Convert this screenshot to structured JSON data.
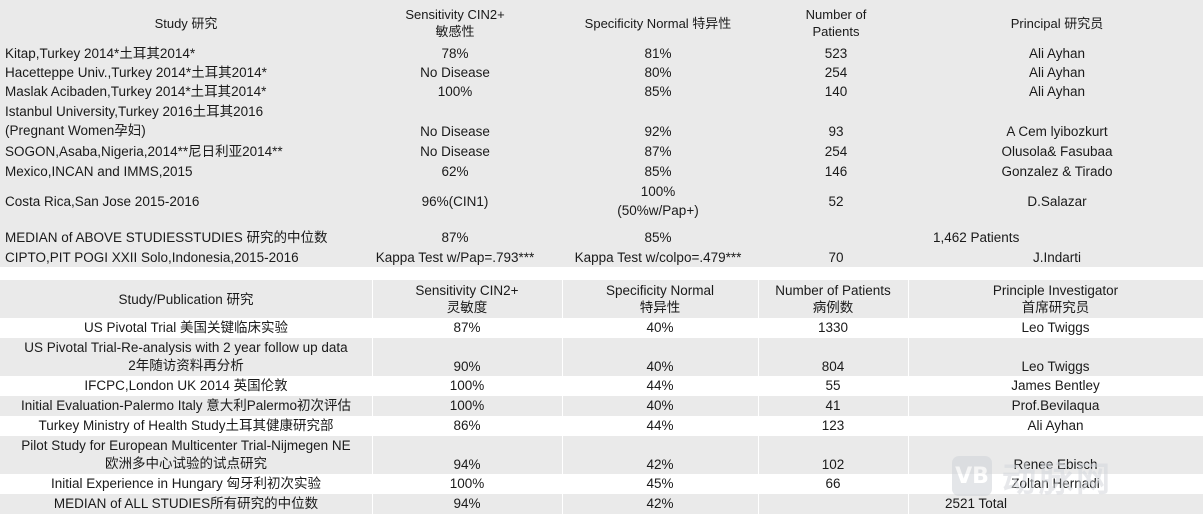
{
  "table1": {
    "headers": {
      "study": "Study 研究",
      "sensitivity_1": "Sensitivity CIN2+",
      "sensitivity_2": "敏感性",
      "specificity": "Specificity Normal 特异性",
      "patients_1": "Number of",
      "patients_2": "Patients",
      "principal": "Principal  研究员"
    },
    "rows": [
      {
        "study": "Kitap,Turkey 2014*土耳其2014*",
        "sensitivity": "78%",
        "specificity": "81%",
        "patients": "523",
        "principal": "Ali Ayhan"
      },
      {
        "study": "Hacetteppe Univ.,Turkey 2014*土耳其2014*",
        "sensitivity": "No Disease",
        "specificity": "80%",
        "patients": "254",
        "principal": "Ali Ayhan"
      },
      {
        "study": "Maslak Acibaden,Turkey 2014*土耳其2014*",
        "sensitivity": "100%",
        "specificity": "85%",
        "patients": "140",
        "principal": "Ali Ayhan"
      },
      {
        "study_1": "Istanbul University,Turkey 2016土耳其2016",
        "study_2": "(Pregnant Women孕妇)",
        "sensitivity": "No Disease",
        "specificity": "92%",
        "patients": "93",
        "principal": "A Cem lyibozkurt"
      },
      {
        "study": "SOGON,Asaba,Nigeria,2014**尼日利亚2014**",
        "sensitivity": "No Disease",
        "specificity": "87%",
        "patients": "254",
        "principal": "Olusola& Fasubaa"
      },
      {
        "study": "Mexico,INCAN and IMMS,2015",
        "sensitivity": "62%",
        "specificity": "85%",
        "patients": "146",
        "principal": "Gonzalez & Tirado"
      },
      {
        "study": "Costa Rica,San Jose 2015-2016",
        "sensitivity": "96%(CIN1)",
        "specificity_1": "100%",
        "specificity_2": "(50%w/Pap+)",
        "patients": "52",
        "principal": "D.Salazar"
      },
      {
        "study": "MEDIAN of ABOVE STUDIESSTUDIES 研究的中位数",
        "sensitivity": "87%",
        "specificity": "85%",
        "patients": "",
        "principal": "1,462 Patients"
      },
      {
        "study": "CIPTO,PIT POGI XXII Solo,Indonesia,2015-2016",
        "sensitivity": "Kappa Test w/Pap=.793***",
        "specificity": "Kappa Test w/colpo=.479***",
        "patients": "70",
        "principal": "J.Indarti"
      }
    ]
  },
  "table2": {
    "headers": {
      "study": "Study/Publication 研究",
      "sensitivity_1": "Sensitivity CIN2+",
      "sensitivity_2": "灵敏度",
      "specificity_1": "Specificity Normal",
      "specificity_2": "特异性",
      "patients_1": "Number of Patients",
      "patients_2": "病例数",
      "investigator_1": "Principle Investigator",
      "investigator_2": "首席研究员"
    },
    "rows": [
      {
        "study": "US Pivotal Trial 美国关键临床实验",
        "sensitivity": "87%",
        "specificity": "40%",
        "patients": "1330",
        "investigator": "Leo Twiggs"
      },
      {
        "study_1": "US Pivotal Trial-Re-analysis with 2 year follow up data",
        "study_2": "2年随访资料再分析",
        "sensitivity": "90%",
        "specificity": "40%",
        "patients": "804",
        "investigator": "Leo Twiggs"
      },
      {
        "study": "IFCPC,London UK 2014 英国伦敦",
        "sensitivity": "100%",
        "specificity": "44%",
        "patients": "55",
        "investigator": "James Bentley"
      },
      {
        "study": "Initial Evaluation-Palermo Italy 意大利Palermo初次评估",
        "sensitivity": "100%",
        "specificity": "40%",
        "patients": "41",
        "investigator": "Prof.Bevilaqua"
      },
      {
        "study": "Turkey Ministry of Health Study土耳其健康研究部",
        "sensitivity": "86%",
        "specificity": "44%",
        "patients": "123",
        "investigator": "Ali Ayhan"
      },
      {
        "study_1": "Pilot Study for European Multicenter Trial-Nijmegen NE",
        "study_2": "欧洲多中心试验的试点研究",
        "sensitivity": "94%",
        "specificity": "42%",
        "patients": "102",
        "investigator": "Renee Ebisch"
      },
      {
        "study": "Initial Experience in Hungary 匈牙利初次实验",
        "sensitivity": "100%",
        "specificity": "45%",
        "patients": "66",
        "investigator": "Zoltan Hernadi"
      },
      {
        "study": "MEDIAN of ALL STUDIES所有研究的中位数",
        "sensitivity": "94%",
        "specificity": "42%",
        "patients": "",
        "investigator": "2521 Total"
      }
    ]
  },
  "watermark": {
    "logo": "VB",
    "text": "动脉网"
  }
}
